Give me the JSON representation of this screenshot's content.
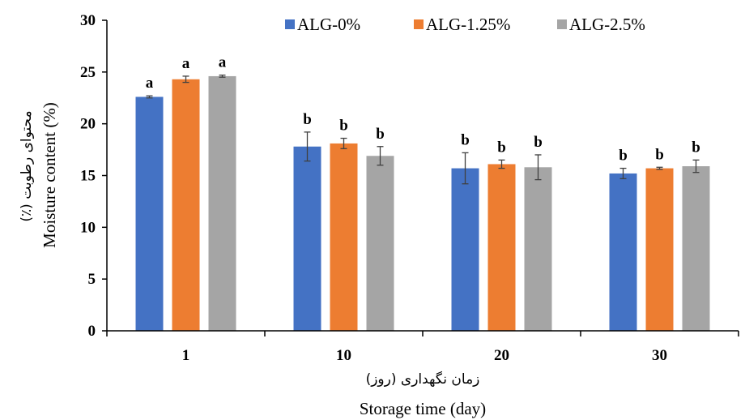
{
  "chart_data": {
    "type": "bar",
    "categories": [
      "1",
      "10",
      "20",
      "30"
    ],
    "series": [
      {
        "name": "ALG-0%",
        "color": "#4472C4",
        "values": [
          22.6,
          17.8,
          15.7,
          15.2
        ],
        "errors": [
          0.1,
          1.4,
          1.5,
          0.5
        ],
        "letters": [
          "a",
          "b",
          "b",
          "b"
        ]
      },
      {
        "name": "ALG-1.25%",
        "color": "#ED7D31",
        "values": [
          24.3,
          18.1,
          16.1,
          15.7
        ],
        "errors": [
          0.3,
          0.5,
          0.4,
          0.1
        ],
        "letters": [
          "a",
          "b",
          "b",
          "b"
        ]
      },
      {
        "name": "ALG-2.5%",
        "color": "#A5A5A5",
        "values": [
          24.6,
          16.9,
          15.8,
          15.9
        ],
        "errors": [
          0.1,
          0.9,
          1.2,
          0.6
        ],
        "letters": [
          "a",
          "b",
          "b",
          "b"
        ]
      }
    ],
    "ylim": [
      0,
      30
    ],
    "yticks": [
      0,
      5,
      10,
      15,
      20,
      25,
      30
    ],
    "ylabel": "Moisture content (%)",
    "ylabel_fa": "محتوای رطوبت (٪)",
    "xlabel": "Storage time (day)",
    "xlabel_fa": "زمان نگهداری (روز)",
    "legend_position": "top-right",
    "grid": false
  }
}
